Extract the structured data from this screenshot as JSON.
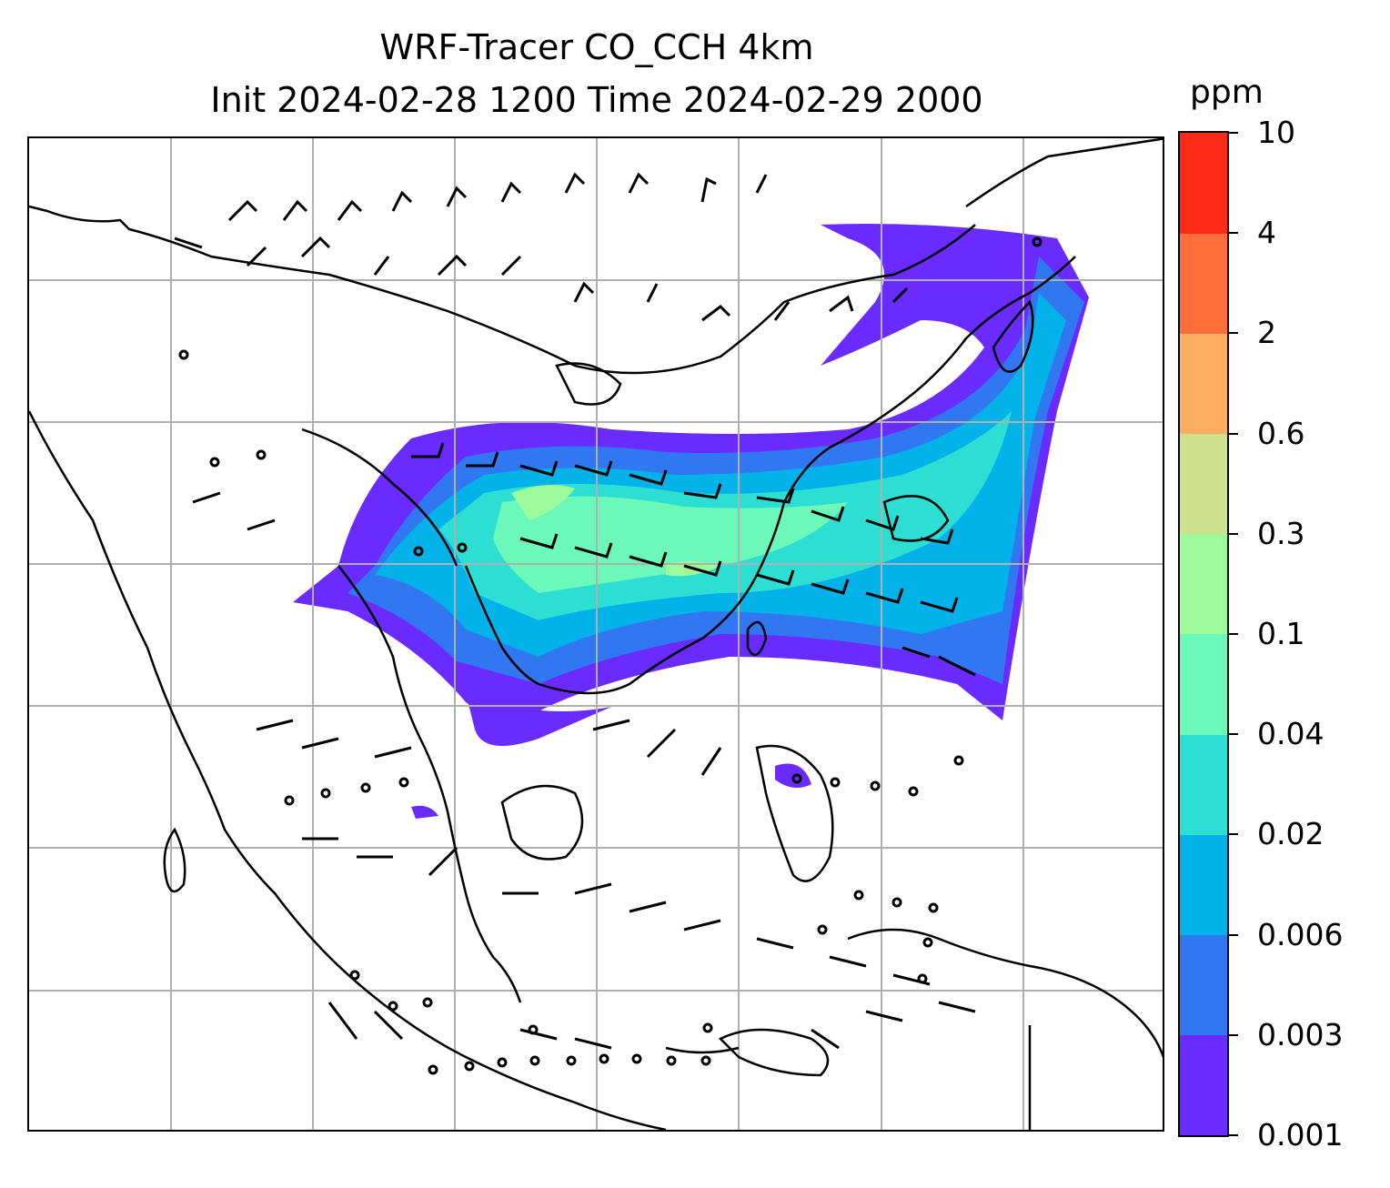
{
  "title": {
    "line1": "WRF-Tracer CO_CCH 4km",
    "line2": "Init 2024-02-28 1200 Time 2024-02-29 2000"
  },
  "colorbar": {
    "unit": "ppm",
    "levels": [
      "0.001",
      "0.003",
      "0.006",
      "0.02",
      "0.04",
      "0.1",
      "0.3",
      "0.6",
      "2",
      "4",
      "10"
    ],
    "colors": [
      "#6a2bff",
      "#3277f2",
      "#04b2ea",
      "#2ddfd2",
      "#6bf8b8",
      "#9cfc9b",
      "#cfe18a",
      "#fdae61",
      "#ff6e3a",
      "#ff2a18"
    ]
  },
  "map": {
    "gridlines": true,
    "fields": [
      "tracer concentration shading",
      "wind barbs",
      "coastlines",
      "country borders"
    ]
  }
}
